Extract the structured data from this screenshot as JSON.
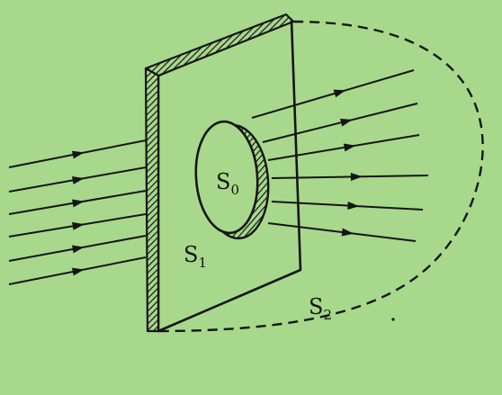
{
  "diagram": {
    "labels": {
      "s0": {
        "main": "S",
        "sub": "0"
      },
      "s1": {
        "main": "S",
        "sub": "1"
      },
      "s2": {
        "main": "S",
        "sub": "2"
      }
    },
    "colors": {
      "background": "#a8d88c",
      "ink": "#151515"
    }
  }
}
